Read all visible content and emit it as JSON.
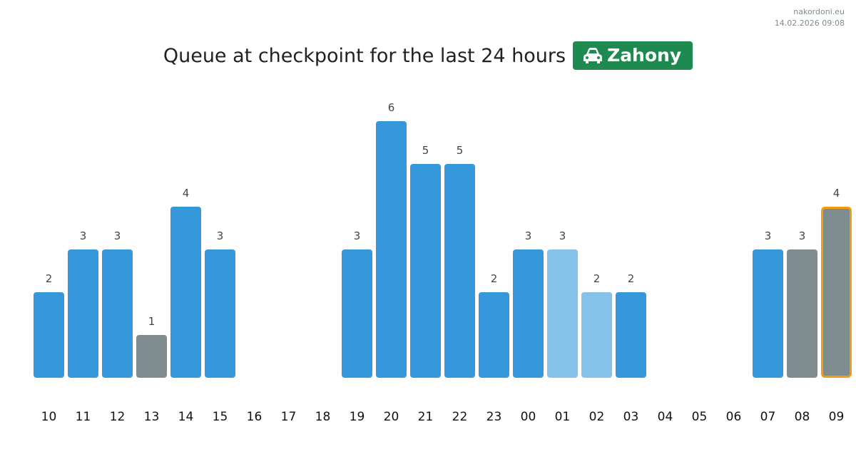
{
  "brand": {
    "site": "nakordoni.eu",
    "timestamp": "14.02.2026 09:08"
  },
  "chart_data": {
    "type": "bar",
    "title": "Queue at checkpoint for the last 24 hours",
    "badge": "Zahony",
    "categories": [
      "10",
      "11",
      "12",
      "13",
      "14",
      "15",
      "16",
      "17",
      "18",
      "19",
      "20",
      "21",
      "22",
      "23",
      "00",
      "01",
      "02",
      "03",
      "04",
      "05",
      "06",
      "07",
      "08",
      "09"
    ],
    "values": [
      2,
      3,
      3,
      1,
      4,
      3,
      null,
      null,
      null,
      3,
      6,
      5,
      5,
      2,
      3,
      3,
      2,
      2,
      null,
      null,
      null,
      3,
      3,
      4
    ],
    "colors": [
      "#3498db",
      "#3498db",
      "#3498db",
      "#7f8c8d",
      "#3498db",
      "#3498db",
      null,
      null,
      null,
      "#3498db",
      "#3498db",
      "#3498db",
      "#3498db",
      "#3498db",
      "#3498db",
      "#85c1e9",
      "#85c1e9",
      "#3498db",
      null,
      null,
      null,
      "#3498db",
      "#7f8c8d",
      "#7f8c8d"
    ],
    "highlight": {
      "category": "09",
      "color": "#f39c12"
    }
  }
}
